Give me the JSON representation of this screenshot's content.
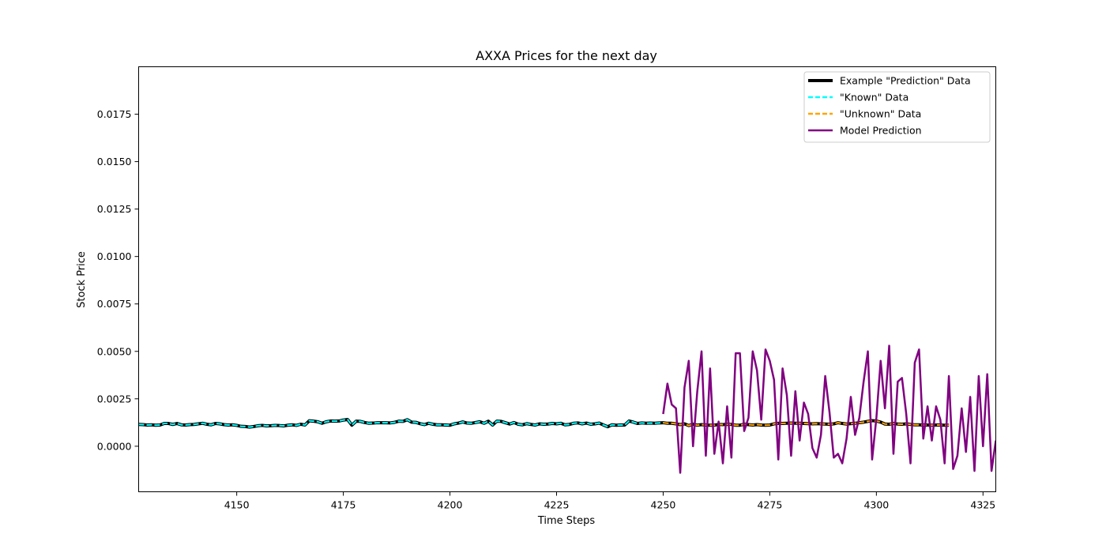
{
  "chart_data": {
    "type": "line",
    "title": "AXXA Prices for the next day",
    "xlabel": "Time Steps",
    "ylabel": "Stock Price",
    "xlim": [
      4127,
      4328
    ],
    "ylim": [
      -0.0024,
      0.02
    ],
    "xticks": [
      4150,
      4175,
      4200,
      4225,
      4250,
      4275,
      4300,
      4325
    ],
    "yticks": [
      0.0,
      0.0025,
      0.005,
      0.0075,
      0.01,
      0.0125,
      0.015,
      0.0175
    ],
    "ytick_labels": [
      "0.0000",
      "0.0025",
      "0.0050",
      "0.0075",
      "0.0100",
      "0.0125",
      "0.0150",
      "0.0175"
    ],
    "grid": false,
    "legend_position": "top-right",
    "series": [
      {
        "name": "Example \"Prediction\" Data",
        "color": "#000000",
        "style": "solid",
        "x_start": 4127,
        "values": [
          0.00115,
          0.00114,
          0.00112,
          0.00113,
          0.00111,
          0.00112,
          0.0012,
          0.0012,
          0.00115,
          0.0012,
          0.00113,
          0.00112,
          0.00114,
          0.00115,
          0.00118,
          0.00121,
          0.00116,
          0.00113,
          0.0012,
          0.00118,
          0.00114,
          0.00112,
          0.00113,
          0.0011,
          0.00105,
          0.00104,
          0.00101,
          0.00104,
          0.00108,
          0.0011,
          0.00107,
          0.00108,
          0.0011,
          0.00109,
          0.00107,
          0.00111,
          0.00113,
          0.0011,
          0.00116,
          0.00112,
          0.00134,
          0.00132,
          0.00129,
          0.00121,
          0.00129,
          0.00133,
          0.00132,
          0.00133,
          0.00138,
          0.00141,
          0.00111,
          0.00132,
          0.00131,
          0.00125,
          0.00121,
          0.00122,
          0.00124,
          0.00124,
          0.00124,
          0.00123,
          0.00126,
          0.00132,
          0.00131,
          0.0014,
          0.00127,
          0.00126,
          0.00119,
          0.00114,
          0.00121,
          0.00116,
          0.00113,
          0.00113,
          0.00112,
          0.00111,
          0.00118,
          0.00122,
          0.00128,
          0.00122,
          0.00121,
          0.00125,
          0.00129,
          0.00121,
          0.00132,
          0.00112,
          0.00132,
          0.00131,
          0.00124,
          0.00117,
          0.00125,
          0.00116,
          0.00113,
          0.00119,
          0.00115,
          0.00112,
          0.00118,
          0.00116,
          0.00117,
          0.0012,
          0.00118,
          0.00121,
          0.00113,
          0.00115,
          0.00121,
          0.00123,
          0.00118,
          0.00122,
          0.00116,
          0.00118,
          0.00122,
          0.00112,
          0.00103,
          0.00113,
          0.00111,
          0.00112,
          0.00112,
          0.00133,
          0.00127,
          0.0012,
          0.00123,
          0.00121,
          0.00122,
          0.00121,
          0.00123,
          0.00124,
          0.00121,
          0.00121,
          0.00118,
          0.00114,
          0.00118,
          0.00109,
          0.00116,
          0.00111,
          0.00114,
          0.00112,
          0.00111,
          0.00111,
          0.00115,
          0.00114,
          0.00116,
          0.00115,
          0.00111,
          0.00111,
          0.00116,
          0.00114,
          0.00112,
          0.00114,
          0.00112,
          0.00111,
          0.00112,
          0.00118,
          0.00121,
          0.0012,
          0.00121,
          0.00122,
          0.00121,
          0.00121,
          0.0012,
          0.00119,
          0.00118,
          0.00119,
          0.00118,
          0.00117,
          0.00116,
          0.00118,
          0.00124,
          0.0012,
          0.00117,
          0.00119,
          0.00121,
          0.00124,
          0.00127,
          0.00131,
          0.00135,
          0.00133,
          0.00127,
          0.00117,
          0.00116,
          0.0012,
          0.00117,
          0.00116,
          0.00118,
          0.00115,
          0.00113,
          0.00113,
          0.00112,
          0.00112,
          0.00111,
          0.00112,
          0.00112,
          0.00111,
          0.00111
        ]
      },
      {
        "name": "\"Known\" Data",
        "color": "#00ffff",
        "style": "dashed",
        "x_start": 4127,
        "x_end": 4250
      },
      {
        "name": "\"Unknown\" Data",
        "color": "#ffa500",
        "style": "dashed",
        "x_start": 4250,
        "x_end": 4327
      },
      {
        "name": "Model Prediction",
        "color": "#800080",
        "style": "solid",
        "x_start": 4250,
        "values": [
          0.0017,
          0.0033,
          0.0022,
          0.002,
          -0.0014,
          0.0031,
          0.0045,
          0.0,
          0.0029,
          0.005,
          -0.0005,
          0.0041,
          -0.0004,
          0.0013,
          -0.0009,
          0.0021,
          -0.0006,
          0.0049,
          0.0049,
          0.0008,
          0.0015,
          0.005,
          0.004,
          0.0014,
          0.0051,
          0.0045,
          0.0035,
          -0.0007,
          0.0041,
          0.0027,
          -0.0005,
          0.0029,
          0.0003,
          0.0023,
          0.0017,
          -0.0001,
          -0.0006,
          0.0006,
          0.0037,
          0.0018,
          -0.0006,
          -0.0004,
          -0.0009,
          0.0004,
          0.0026,
          0.0006,
          0.0015,
          0.0034,
          0.005,
          -0.0007,
          0.0015,
          0.0045,
          0.002,
          0.0053,
          -0.0004,
          0.0034,
          0.0036,
          0.0017,
          -0.0009,
          0.0044,
          0.0051,
          0.0004,
          0.0021,
          0.0003,
          0.0021,
          0.0014,
          -0.0009,
          0.0037,
          -0.0012,
          -0.0005,
          0.002,
          -0.0003,
          0.0026,
          -0.0013,
          0.0037,
          0.0,
          0.0038,
          -0.0013,
          0.0003
        ]
      }
    ]
  }
}
